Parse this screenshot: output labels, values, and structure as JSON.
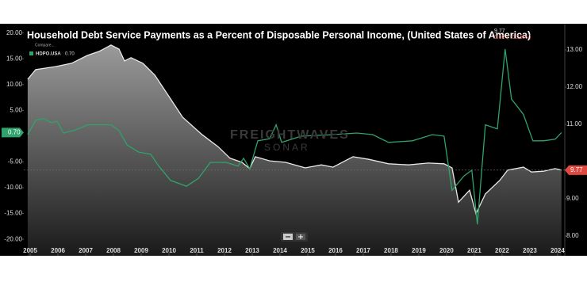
{
  "chart_data": {
    "type": "line",
    "title": "Household Debt Service Payments as a Percent of Disposable Personal Income, (United States of America)",
    "quote": {
      "value": "9.77",
      "change": "0.02 ( -0.21% )"
    },
    "compare_label": "Compare...",
    "watermark": [
      "FREIGHTWAVES",
      "SONAR"
    ],
    "xlim": [
      2004.77,
      2024.26
    ],
    "xticks": [
      2005,
      2006,
      2007,
      2008,
      2009,
      2010,
      2011,
      2012,
      2013,
      2014,
      2015,
      2016,
      2017,
      2018,
      2019,
      2020,
      2021,
      2022,
      2023,
      2024
    ],
    "ylim": [
      -23.2,
      21.8
    ],
    "yticks": [
      {
        "value": 20,
        "label": "20.00"
      },
      {
        "value": 15,
        "label": "15.00"
      },
      {
        "value": 10,
        "label": "10.00"
      },
      {
        "value": 5,
        "label": "5.00"
      },
      {
        "value": -5,
        "label": "-5.00"
      },
      {
        "value": -10,
        "label": "-10.00"
      },
      {
        "value": -15,
        "label": "-15.00"
      },
      {
        "value": -20,
        "label": "-20.00"
      }
    ],
    "y2lim": [
      7.47,
      13.7
    ],
    "y2ticks": [
      {
        "value": 13,
        "label": "13.00"
      },
      {
        "value": 12,
        "label": "12.00"
      },
      {
        "value": 11,
        "label": "11.00"
      },
      {
        "value": 9,
        "label": "9.00"
      },
      {
        "value": 8,
        "label": "8.00"
      }
    ],
    "series": [
      {
        "axis": "y2",
        "color": "#e8e8e8",
        "fill": true,
        "last_label": "9.77",
        "badge_color": "#e0493f",
        "x": [
          2004.91,
          2005.2,
          2005.91,
          2006.49,
          2007.06,
          2007.49,
          2007.91,
          2008.2,
          2008.4,
          2008.63,
          2009.06,
          2009.49,
          2010.06,
          2010.49,
          2011.2,
          2011.77,
          2012.2,
          2012.63,
          2012.91,
          2013.11,
          2013.63,
          2014.2,
          2014.91,
          2015.49,
          2015.91,
          2016.63,
          2017.2,
          2017.91,
          2018.63,
          2019.34,
          2019.91,
          2020.2,
          2020.43,
          2020.83,
          2021.06,
          2021.4,
          2021.91,
          2022.2,
          2022.77,
          2023.06,
          2023.49,
          2023.91,
          2024.14
        ],
        "values": [
          12.21,
          12.47,
          12.55,
          12.64,
          12.85,
          12.96,
          13.13,
          13.02,
          12.7,
          12.79,
          12.64,
          12.32,
          11.68,
          11.19,
          10.72,
          10.4,
          10.09,
          9.98,
          9.81,
          10.13,
          10.02,
          9.98,
          9.83,
          9.91,
          9.85,
          10.13,
          10.06,
          9.94,
          9.91,
          9.96,
          9.94,
          9.83,
          8.91,
          9.23,
          8.6,
          9.13,
          9.49,
          9.77,
          9.85,
          9.72,
          9.74,
          9.81,
          9.77
        ]
      },
      {
        "name": "HDPO.USA",
        "axis": "y",
        "color": "#2fa36b",
        "fill": false,
        "last_label": "0.70",
        "badge_color": "#2fa36b",
        "x": [
          2004.91,
          2005.2,
          2005.49,
          2005.77,
          2005.97,
          2006.2,
          2006.63,
          2007.06,
          2007.91,
          2008.2,
          2008.49,
          2008.91,
          2009.34,
          2009.63,
          2010.06,
          2010.63,
          2011.06,
          2011.49,
          2012.06,
          2012.49,
          2012.69,
          2012.91,
          2013.2,
          2013.63,
          2013.86,
          2014.06,
          2014.77,
          2015.91,
          2016.77,
          2017.34,
          2017.91,
          2018.77,
          2019.49,
          2019.91,
          2020.2,
          2020.63,
          2020.91,
          2021.11,
          2021.4,
          2021.83,
          2022.11,
          2022.34,
          2022.77,
          2023.11,
          2023.49,
          2023.91,
          2024.14
        ],
        "values": [
          0.3,
          3.1,
          3.4,
          2.6,
          2.9,
          0.6,
          1.2,
          2.2,
          2.2,
          1.1,
          -1.7,
          -3.1,
          -3.5,
          -5.8,
          -8.6,
          -9.7,
          -8.2,
          -5.1,
          -5.1,
          -5.8,
          -4.3,
          -6.3,
          -0.9,
          -0.5,
          2.2,
          -1.2,
          0,
          0.3,
          0.6,
          0.3,
          -1.2,
          -0.9,
          0.3,
          0,
          -10.5,
          -7.7,
          -6.6,
          -17.1,
          2.2,
          1.4,
          16.9,
          7.2,
          4.2,
          -0.9,
          -0.9,
          -0.6,
          0.7
        ]
      }
    ]
  }
}
